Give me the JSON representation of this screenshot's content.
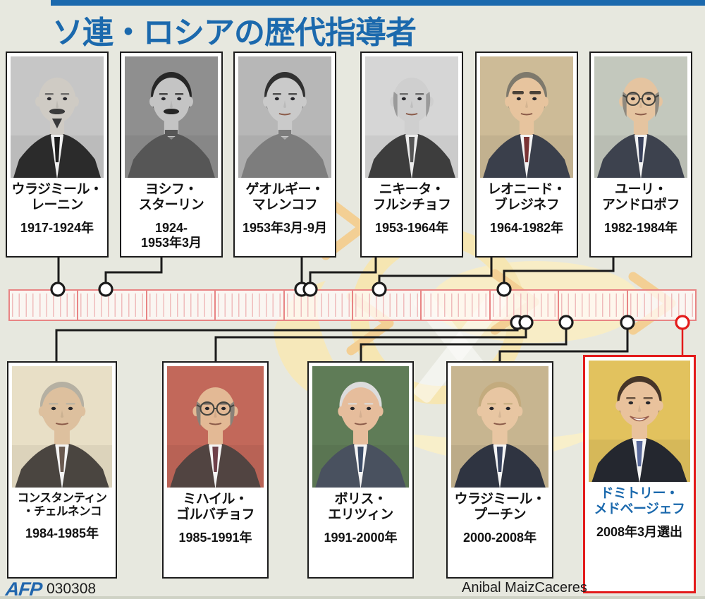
{
  "title": "ソ連・ロシアの歴代指導者",
  "footer": {
    "logo": "AFP",
    "code": "030308",
    "credit": "Anibal MaizCaceres"
  },
  "timeline": {
    "start_year": 1910,
    "end_year": 2010,
    "decade_segments": 10,
    "tick_unit": "year"
  },
  "colors": {
    "accent_blue": "#1b69ad",
    "timeline_red": "#e88484",
    "tick_pink": "#f0bcbc",
    "highlight_red": "#e31b1b",
    "connector_black": "#1b1b1b",
    "background": "#e7e8df",
    "marker_fill": "#ffffff"
  },
  "top_row": [
    {
      "id": "lenin",
      "name_lines": [
        "ウラジミール・",
        "レーニン"
      ],
      "year_lines": [
        "1917-1924年"
      ],
      "start_year": 1917,
      "photo": {
        "style": "bw",
        "bg": "#c6c6c6",
        "suit": "#2b2b2b",
        "shirt": "#efefef",
        "tie": "#1e1e1e",
        "skin": "#cfcbc4",
        "bald": true,
        "mustache": true,
        "goatee": true,
        "facial": "#3a3a3a"
      }
    },
    {
      "id": "stalin",
      "name_lines": [
        "ヨシフ・",
        "スターリン"
      ],
      "year_lines": [
        "1924-",
        "1953年3月"
      ],
      "start_year": 1924,
      "photo": {
        "style": "bw",
        "bg": "#8f8f8f",
        "tunic": true,
        "suit": "#565656",
        "skin": "#c4c4c4",
        "hair": "#262626",
        "mustache": true,
        "facial": "#262626"
      }
    },
    {
      "id": "malenkov",
      "name_lines": [
        "ゲオルギー・",
        "マレンコフ"
      ],
      "year_lines": [
        "1953年3月-9月"
      ],
      "start_year": 1953,
      "photo": {
        "style": "bw",
        "bg": "#b7b7b7",
        "tunic": true,
        "suit": "#7d7d7d",
        "skin": "#cacaca",
        "hair": "#303030"
      }
    },
    {
      "id": "khrushchev",
      "name_lines": [
        "ニキータ・",
        "フルシチョフ"
      ],
      "year_lines": [
        "1953-1964年"
      ],
      "start_year": 1953,
      "photo": {
        "style": "bw",
        "bg": "#d6d6d6",
        "suit": "#3d3d3d",
        "shirt": "#ececec",
        "tie": "#555555",
        "skin": "#cfcfcf",
        "bald": true,
        "sides": "#9a9a9a"
      }
    },
    {
      "id": "brezhnev",
      "name_lines": [
        "レオニード・",
        "ブレジネフ"
      ],
      "year_lines": [
        "1964-1982年"
      ],
      "start_year": 1964,
      "photo": {
        "style": "color",
        "bg": "#cdbb97",
        "suit": "#3a3f4b",
        "shirt": "#f4f4f4",
        "tie": "#7a3334",
        "skin": "#e7c49e",
        "hair": "#7e796c",
        "thickBrows": true,
        "brows": "#4a4238"
      }
    },
    {
      "id": "andropov",
      "name_lines": [
        "ユーリ・",
        "アンドロポフ"
      ],
      "year_lines": [
        "1982-1984年"
      ],
      "start_year": 1982,
      "photo": {
        "style": "color",
        "bg": "#c3c8bd",
        "suit": "#3d424e",
        "shirt": "#f2f2f2",
        "tie": "#39415c",
        "skin": "#e5c4a0",
        "bald": true,
        "sides": "#8f897e",
        "glasses": true
      }
    }
  ],
  "bottom_row": [
    {
      "id": "chernenko",
      "name_lines": [
        "コンスタンティン",
        "・チェルネンコ"
      ],
      "year_lines": [
        "1984-1985年"
      ],
      "start_year": 1984,
      "photo": {
        "style": "color",
        "bg": "#e8dfc6",
        "suit": "#4a4540",
        "shirt": "#f4f4f4",
        "tie": "#6a5a50",
        "skin": "#ddc09e",
        "hair": "#b5b0a2"
      }
    },
    {
      "id": "gorbachev",
      "name_lines": [
        "ミハイル・",
        "ゴルバチョフ"
      ],
      "year_lines": [
        "1985-1991年"
      ],
      "start_year": 1985,
      "photo": {
        "style": "color",
        "bg": "#c2685a",
        "suit": "#514441",
        "shirt": "#f4f4f4",
        "tie": "#6e4049",
        "skin": "#e3b995",
        "bald": true,
        "sides": "#8a8178",
        "glasses": true
      }
    },
    {
      "id": "yeltsin",
      "name_lines": [
        "ボリス・",
        "エリツィン"
      ],
      "year_lines": [
        "1991-2000年"
      ],
      "start_year": 1991,
      "photo": {
        "style": "color",
        "bg": "#5f7c57",
        "suit": "#49515f",
        "shirt": "#f4f4f4",
        "tie": "#3d4d68",
        "skin": "#e6bd9c",
        "hair": "#dcdcdc"
      }
    },
    {
      "id": "putin",
      "name_lines": [
        "ウラジミール・",
        "プーチン"
      ],
      "year_lines": [
        "2000-2008年"
      ],
      "start_year": 2000,
      "photo": {
        "style": "color",
        "bg": "#c7b590",
        "suit": "#2f3441",
        "shirt": "#f4f4f4",
        "tie": "#3a4560",
        "skin": "#e8c6a2",
        "hair": "#c3ab7e"
      }
    },
    {
      "id": "medvedev",
      "name_lines": [
        "ドミトリー・",
        "メドベージェフ"
      ],
      "year_lines": [
        "2008年3月選出"
      ],
      "start_year": 2008,
      "highlight": true,
      "photo": {
        "style": "color",
        "bg": "#e2c25e",
        "suit": "#24272f",
        "shirt": "#f4f4f4",
        "tie": "#5a6a9c",
        "skin": "#e9c29c",
        "hair": "#463528",
        "smile": true
      }
    }
  ]
}
